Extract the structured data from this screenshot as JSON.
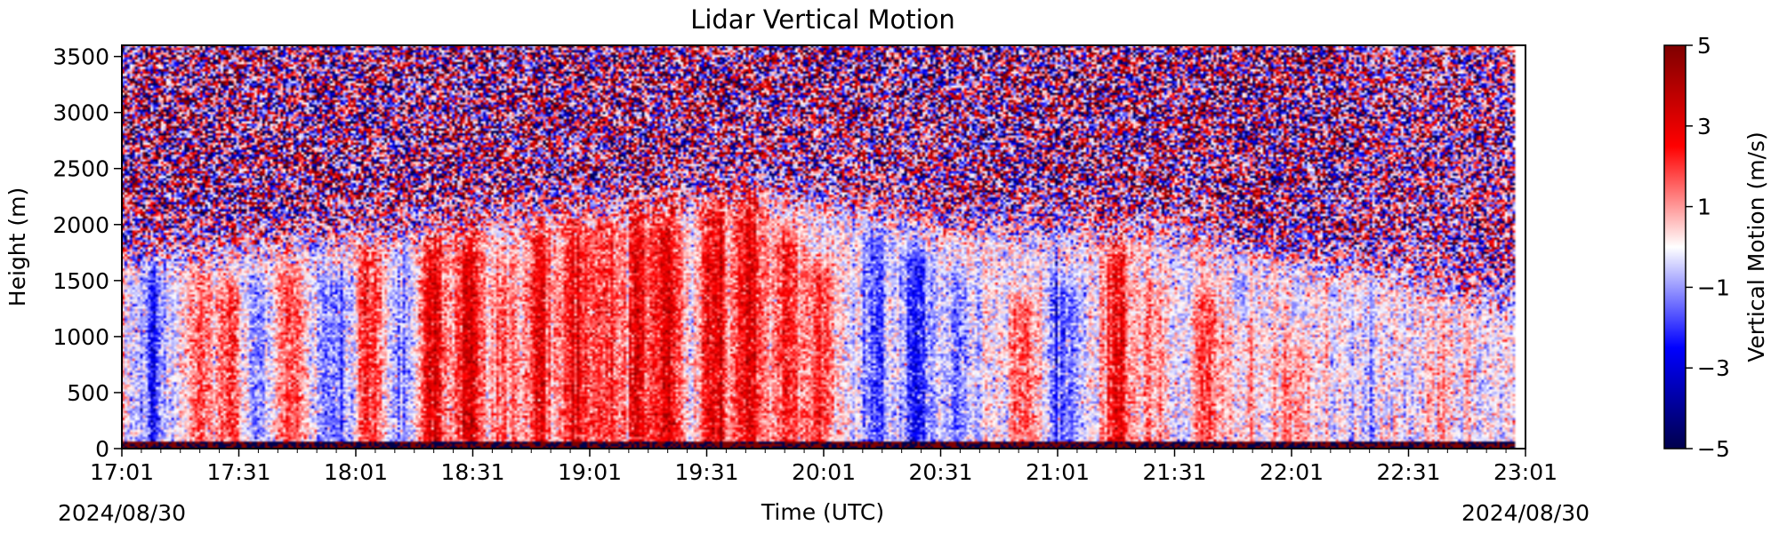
{
  "chart_data": {
    "type": "heatmap",
    "title": "Lidar Vertical Motion",
    "xlabel": "Time (UTC)",
    "ylabel": "Height (m)",
    "colorbar_label": "Vertical Motion (m/s)",
    "date_left": "2024/08/30",
    "date_right": "2024/08/30",
    "colormap": [
      "#00004c",
      "#0000ff",
      "#ffffff",
      "#ff0000",
      "#7f0000"
    ],
    "color_range": [
      -5,
      5
    ],
    "colorbar_ticks": [
      {
        "value": 5,
        "label": "5"
      },
      {
        "value": 3,
        "label": "3"
      },
      {
        "value": 1,
        "label": "1"
      },
      {
        "value": -1,
        "label": "−1"
      },
      {
        "value": -3,
        "label": "−3"
      },
      {
        "value": -5,
        "label": "−5"
      }
    ],
    "x_range": [
      "17:01",
      "23:01"
    ],
    "x_ticks": [
      "17:01",
      "17:31",
      "18:01",
      "18:31",
      "19:01",
      "19:31",
      "20:01",
      "20:31",
      "21:01",
      "21:31",
      "22:01",
      "22:31",
      "23:01"
    ],
    "data_end": "22:58",
    "ylim": [
      0,
      3600
    ],
    "y_ticks": [
      0,
      500,
      1000,
      1500,
      2000,
      2500,
      3000,
      3500
    ],
    "noise_above_m": [
      {
        "time": "17:01",
        "height": 1700
      },
      {
        "time": "18:31",
        "height": 2000
      },
      {
        "time": "19:46",
        "height": 2300
      },
      {
        "time": "20:31",
        "height": 2000
      },
      {
        "time": "21:31",
        "height": 1950
      },
      {
        "time": "22:31",
        "height": 1500
      },
      {
        "time": "22:58",
        "height": 1300
      }
    ],
    "features": [
      {
        "time": "17:09",
        "top_m": 1500,
        "w": -2.0
      },
      {
        "time": "17:21",
        "top_m": 1400,
        "w": 1.5
      },
      {
        "time": "17:29",
        "top_m": 1300,
        "w": 1.8
      },
      {
        "time": "17:36",
        "top_m": 1400,
        "w": -1.2
      },
      {
        "time": "17:45",
        "top_m": 1500,
        "w": 2.0
      },
      {
        "time": "17:56",
        "top_m": 1400,
        "w": -1.8
      },
      {
        "time": "18:05",
        "top_m": 1700,
        "w": 2.5
      },
      {
        "time": "18:12",
        "top_m": 1500,
        "w": -1.0
      },
      {
        "time": "18:21",
        "top_m": 1800,
        "w": 3.2
      },
      {
        "time": "18:30",
        "top_m": 1900,
        "w": 3.0
      },
      {
        "time": "18:39",
        "top_m": 1600,
        "w": 1.5
      },
      {
        "time": "18:48",
        "top_m": 1900,
        "w": 2.5
      },
      {
        "time": "18:57",
        "top_m": 2100,
        "w": 3.0
      },
      {
        "time": "19:05",
        "top_m": 1900,
        "w": 2.0
      },
      {
        "time": "19:13",
        "top_m": 2100,
        "w": 3.0
      },
      {
        "time": "19:21",
        "top_m": 2200,
        "w": 3.0
      },
      {
        "time": "19:33",
        "top_m": 2200,
        "w": 3.2
      },
      {
        "time": "19:42",
        "top_m": 2300,
        "w": 3.2
      },
      {
        "time": "19:52",
        "top_m": 1800,
        "w": 2.0
      },
      {
        "time": "20:00",
        "top_m": 1500,
        "w": 2.2
      },
      {
        "time": "20:14",
        "top_m": 1800,
        "w": -1.5
      },
      {
        "time": "20:25",
        "top_m": 1600,
        "w": -2.2
      },
      {
        "time": "20:36",
        "top_m": 1400,
        "w": -1.5
      },
      {
        "time": "20:52",
        "top_m": 1200,
        "w": 1.8
      },
      {
        "time": "21:03",
        "top_m": 1300,
        "w": -1.5
      },
      {
        "time": "21:16",
        "top_m": 1700,
        "w": 2.8
      },
      {
        "time": "21:25",
        "top_m": 1300,
        "w": 1.0
      },
      {
        "time": "21:39",
        "top_m": 1200,
        "w": 1.5
      },
      {
        "time": "21:49",
        "top_m": 1000,
        "w": 1.0
      },
      {
        "time": "22:02",
        "top_m": 800,
        "w": 1.2
      },
      {
        "time": "22:20",
        "top_m": 1300,
        "w": -0.6
      },
      {
        "time": "22:40",
        "top_m": 900,
        "w": 0.5
      }
    ],
    "grid": false
  }
}
